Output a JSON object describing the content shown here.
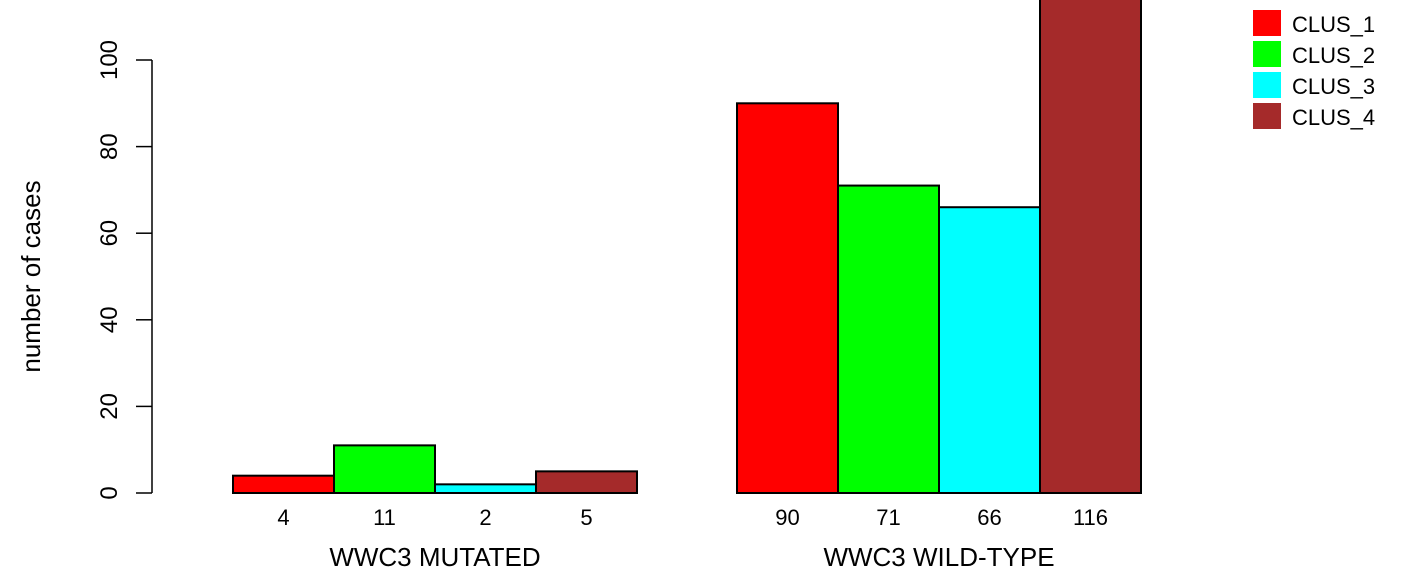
{
  "chart_data": {
    "type": "bar",
    "ylabel": "number of cases",
    "ylim": [
      0,
      116
    ],
    "yticks": [
      0,
      20,
      40,
      60,
      80,
      100
    ],
    "grid": false,
    "legend_position": "top-right",
    "series": [
      {
        "name": "CLUS_1",
        "color": "#ff0000"
      },
      {
        "name": "CLUS_2",
        "color": "#00ff00"
      },
      {
        "name": "CLUS_3",
        "color": "#00ffff"
      },
      {
        "name": "CLUS_4",
        "color": "#a52a2a"
      }
    ],
    "groups": [
      {
        "label": "WWC3 MUTATED",
        "values": [
          4,
          11,
          2,
          5
        ]
      },
      {
        "label": "WWC3 WILD-TYPE",
        "values": [
          90,
          71,
          66,
          116
        ]
      }
    ]
  }
}
